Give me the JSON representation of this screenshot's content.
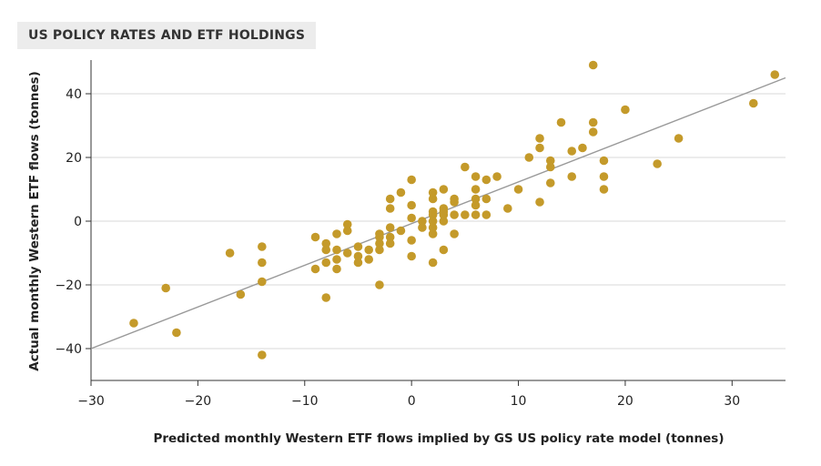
{
  "chart_data": {
    "type": "scatter",
    "title": "US POLICY RATES AND ETF HOLDINGS",
    "xlabel": "Predicted monthly Western ETF flows implied by GS US policy rate model (tonnes)",
    "ylabel": "Actual monthly Western ETF flows (tonnes)",
    "xlim": [
      -30,
      35
    ],
    "ylim": [
      -50,
      50
    ],
    "xticks": [
      -30,
      -20,
      -10,
      0,
      10,
      20,
      30
    ],
    "yticks": [
      -40,
      -20,
      0,
      20,
      40
    ],
    "grid": "horizontal",
    "point_color": "#c49a2a",
    "line_color": "#999999",
    "regression_line": {
      "x": [
        -30,
        35
      ],
      "y": [
        -40,
        45
      ]
    },
    "points": [
      [
        -26,
        -32
      ],
      [
        -23,
        -21
      ],
      [
        -22,
        -35
      ],
      [
        -17,
        -10
      ],
      [
        -16,
        -23
      ],
      [
        -14,
        -8
      ],
      [
        -14,
        -13
      ],
      [
        -14,
        -19
      ],
      [
        -14,
        -42
      ],
      [
        -9,
        -5
      ],
      [
        -9,
        -15
      ],
      [
        -8,
        -7
      ],
      [
        -8,
        -9
      ],
      [
        -8,
        -13
      ],
      [
        -8,
        -24
      ],
      [
        -7,
        -4
      ],
      [
        -7,
        -9
      ],
      [
        -7,
        -12
      ],
      [
        -7,
        -15
      ],
      [
        -6,
        -1
      ],
      [
        -6,
        -3
      ],
      [
        -6,
        -10
      ],
      [
        -5,
        -8
      ],
      [
        -5,
        -11
      ],
      [
        -5,
        -13
      ],
      [
        -4,
        -9
      ],
      [
        -4,
        -12
      ],
      [
        -3,
        -4
      ],
      [
        -3,
        -5
      ],
      [
        -3,
        -7
      ],
      [
        -3,
        -9
      ],
      [
        -3,
        -20
      ],
      [
        -2,
        7
      ],
      [
        -2,
        4
      ],
      [
        -2,
        -2
      ],
      [
        -2,
        -5
      ],
      [
        -2,
        -7
      ],
      [
        -1,
        9
      ],
      [
        -1,
        -3
      ],
      [
        0,
        13
      ],
      [
        0,
        5
      ],
      [
        0,
        1
      ],
      [
        0,
        -6
      ],
      [
        0,
        -11
      ],
      [
        1,
        0
      ],
      [
        1,
        -2
      ],
      [
        2,
        9
      ],
      [
        2,
        7
      ],
      [
        2,
        3
      ],
      [
        2,
        2
      ],
      [
        2,
        0
      ],
      [
        2,
        -2
      ],
      [
        2,
        -4
      ],
      [
        2,
        -13
      ],
      [
        3,
        10
      ],
      [
        3,
        4
      ],
      [
        3,
        3
      ],
      [
        3,
        2
      ],
      [
        3,
        0
      ],
      [
        3,
        -9
      ],
      [
        4,
        7
      ],
      [
        4,
        6
      ],
      [
        4,
        2
      ],
      [
        4,
        -4
      ],
      [
        5,
        17
      ],
      [
        5,
        2
      ],
      [
        6,
        14
      ],
      [
        6,
        10
      ],
      [
        6,
        7
      ],
      [
        6,
        5
      ],
      [
        6,
        2
      ],
      [
        7,
        13
      ],
      [
        7,
        7
      ],
      [
        7,
        2
      ],
      [
        8,
        14
      ],
      [
        9,
        4
      ],
      [
        10,
        10
      ],
      [
        11,
        20
      ],
      [
        12,
        26
      ],
      [
        12,
        23
      ],
      [
        12,
        6
      ],
      [
        13,
        19
      ],
      [
        13,
        17
      ],
      [
        13,
        12
      ],
      [
        14,
        31
      ],
      [
        15,
        22
      ],
      [
        15,
        14
      ],
      [
        16,
        23
      ],
      [
        17,
        49
      ],
      [
        17,
        31
      ],
      [
        17,
        28
      ],
      [
        18,
        19
      ],
      [
        18,
        14
      ],
      [
        18,
        10
      ],
      [
        20,
        35
      ],
      [
        23,
        18
      ],
      [
        25,
        26
      ],
      [
        32,
        37
      ],
      [
        34,
        46
      ]
    ]
  }
}
